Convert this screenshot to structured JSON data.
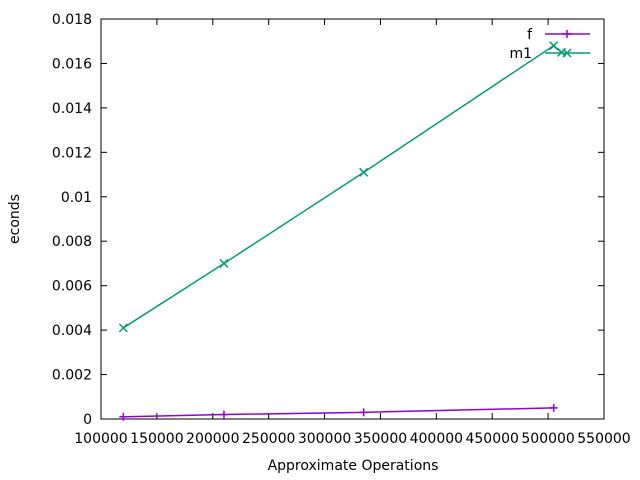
{
  "chart_data": {
    "type": "line",
    "title": "",
    "xlabel": "Approximate Operations",
    "ylabel": "econds",
    "xlim": [
      100000,
      550000
    ],
    "ylim": [
      0,
      0.018
    ],
    "x_ticks": [
      100000,
      150000,
      200000,
      250000,
      300000,
      350000,
      400000,
      450000,
      500000,
      550000
    ],
    "x_tick_labels": [
      "100000",
      "150000",
      "200000",
      "250000",
      "300000",
      "350000",
      "400000",
      "450000",
      "500000",
      "550000"
    ],
    "y_ticks": [
      0,
      0.002,
      0.004,
      0.006,
      0.008,
      0.01,
      0.012,
      0.014,
      0.016,
      0.018
    ],
    "y_tick_labels": [
      "0",
      "0.002",
      "0.004",
      "0.006",
      "0.008",
      "0.01",
      "0.012",
      "0.014",
      "0.016",
      "0.018"
    ],
    "grid": false,
    "legend_position": "top-right",
    "series": [
      {
        "name": "f",
        "color": "#9400d3",
        "marker": "plus",
        "x": [
          120000,
          210000,
          335000,
          505000
        ],
        "y": [
          0.0001,
          0.0002,
          0.0003,
          0.0005
        ]
      },
      {
        "name": "m1",
        "color": "#009e73",
        "marker": "cross",
        "x": [
          120000,
          210000,
          335000,
          505000,
          512000
        ],
        "y": [
          0.0041,
          0.007,
          0.0111,
          0.0168,
          0.0165
        ]
      }
    ]
  }
}
